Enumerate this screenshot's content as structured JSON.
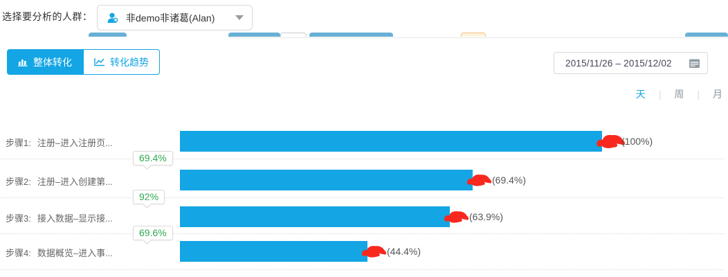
{
  "header": {
    "cohort_label": "选择要分析的人群：",
    "cohort_value": "非demo非诸葛(Alan)"
  },
  "toolbar": {
    "tabs": [
      {
        "label": "整体转化",
        "icon": "bar-chart-icon",
        "active": true
      },
      {
        "label": "转化趋势",
        "icon": "line-chart-icon",
        "active": false
      }
    ],
    "date_range": "2015/11/26 – 2015/12/02",
    "granularity": {
      "options": [
        "天",
        "周",
        "月"
      ],
      "selected": "天"
    }
  },
  "colors": {
    "accent": "#14a5e4",
    "green": "#2fa84f",
    "annotation_red": "#f8281e"
  },
  "chart_data": {
    "type": "bar",
    "orientation": "horizontal",
    "xlim": [
      0,
      100
    ],
    "steps": [
      {
        "step_no": "步骤1:",
        "name": "注册–进入注册页...",
        "value": 100,
        "percent_label": "(100%)"
      },
      {
        "step_no": "步骤2:",
        "name": "注册–进入创建第...",
        "value": 69.4,
        "percent_label": "(69.4%)"
      },
      {
        "step_no": "步骤3:",
        "name": "接入数据–显示接...",
        "value": 63.9,
        "percent_label": "(63.9%)"
      },
      {
        "step_no": "步骤4:",
        "name": "数据概览–进入事...",
        "value": 44.4,
        "percent_label": "(44.4%)"
      }
    ],
    "conversion_badges": [
      "69.4%",
      "92%",
      "69.6%"
    ]
  }
}
